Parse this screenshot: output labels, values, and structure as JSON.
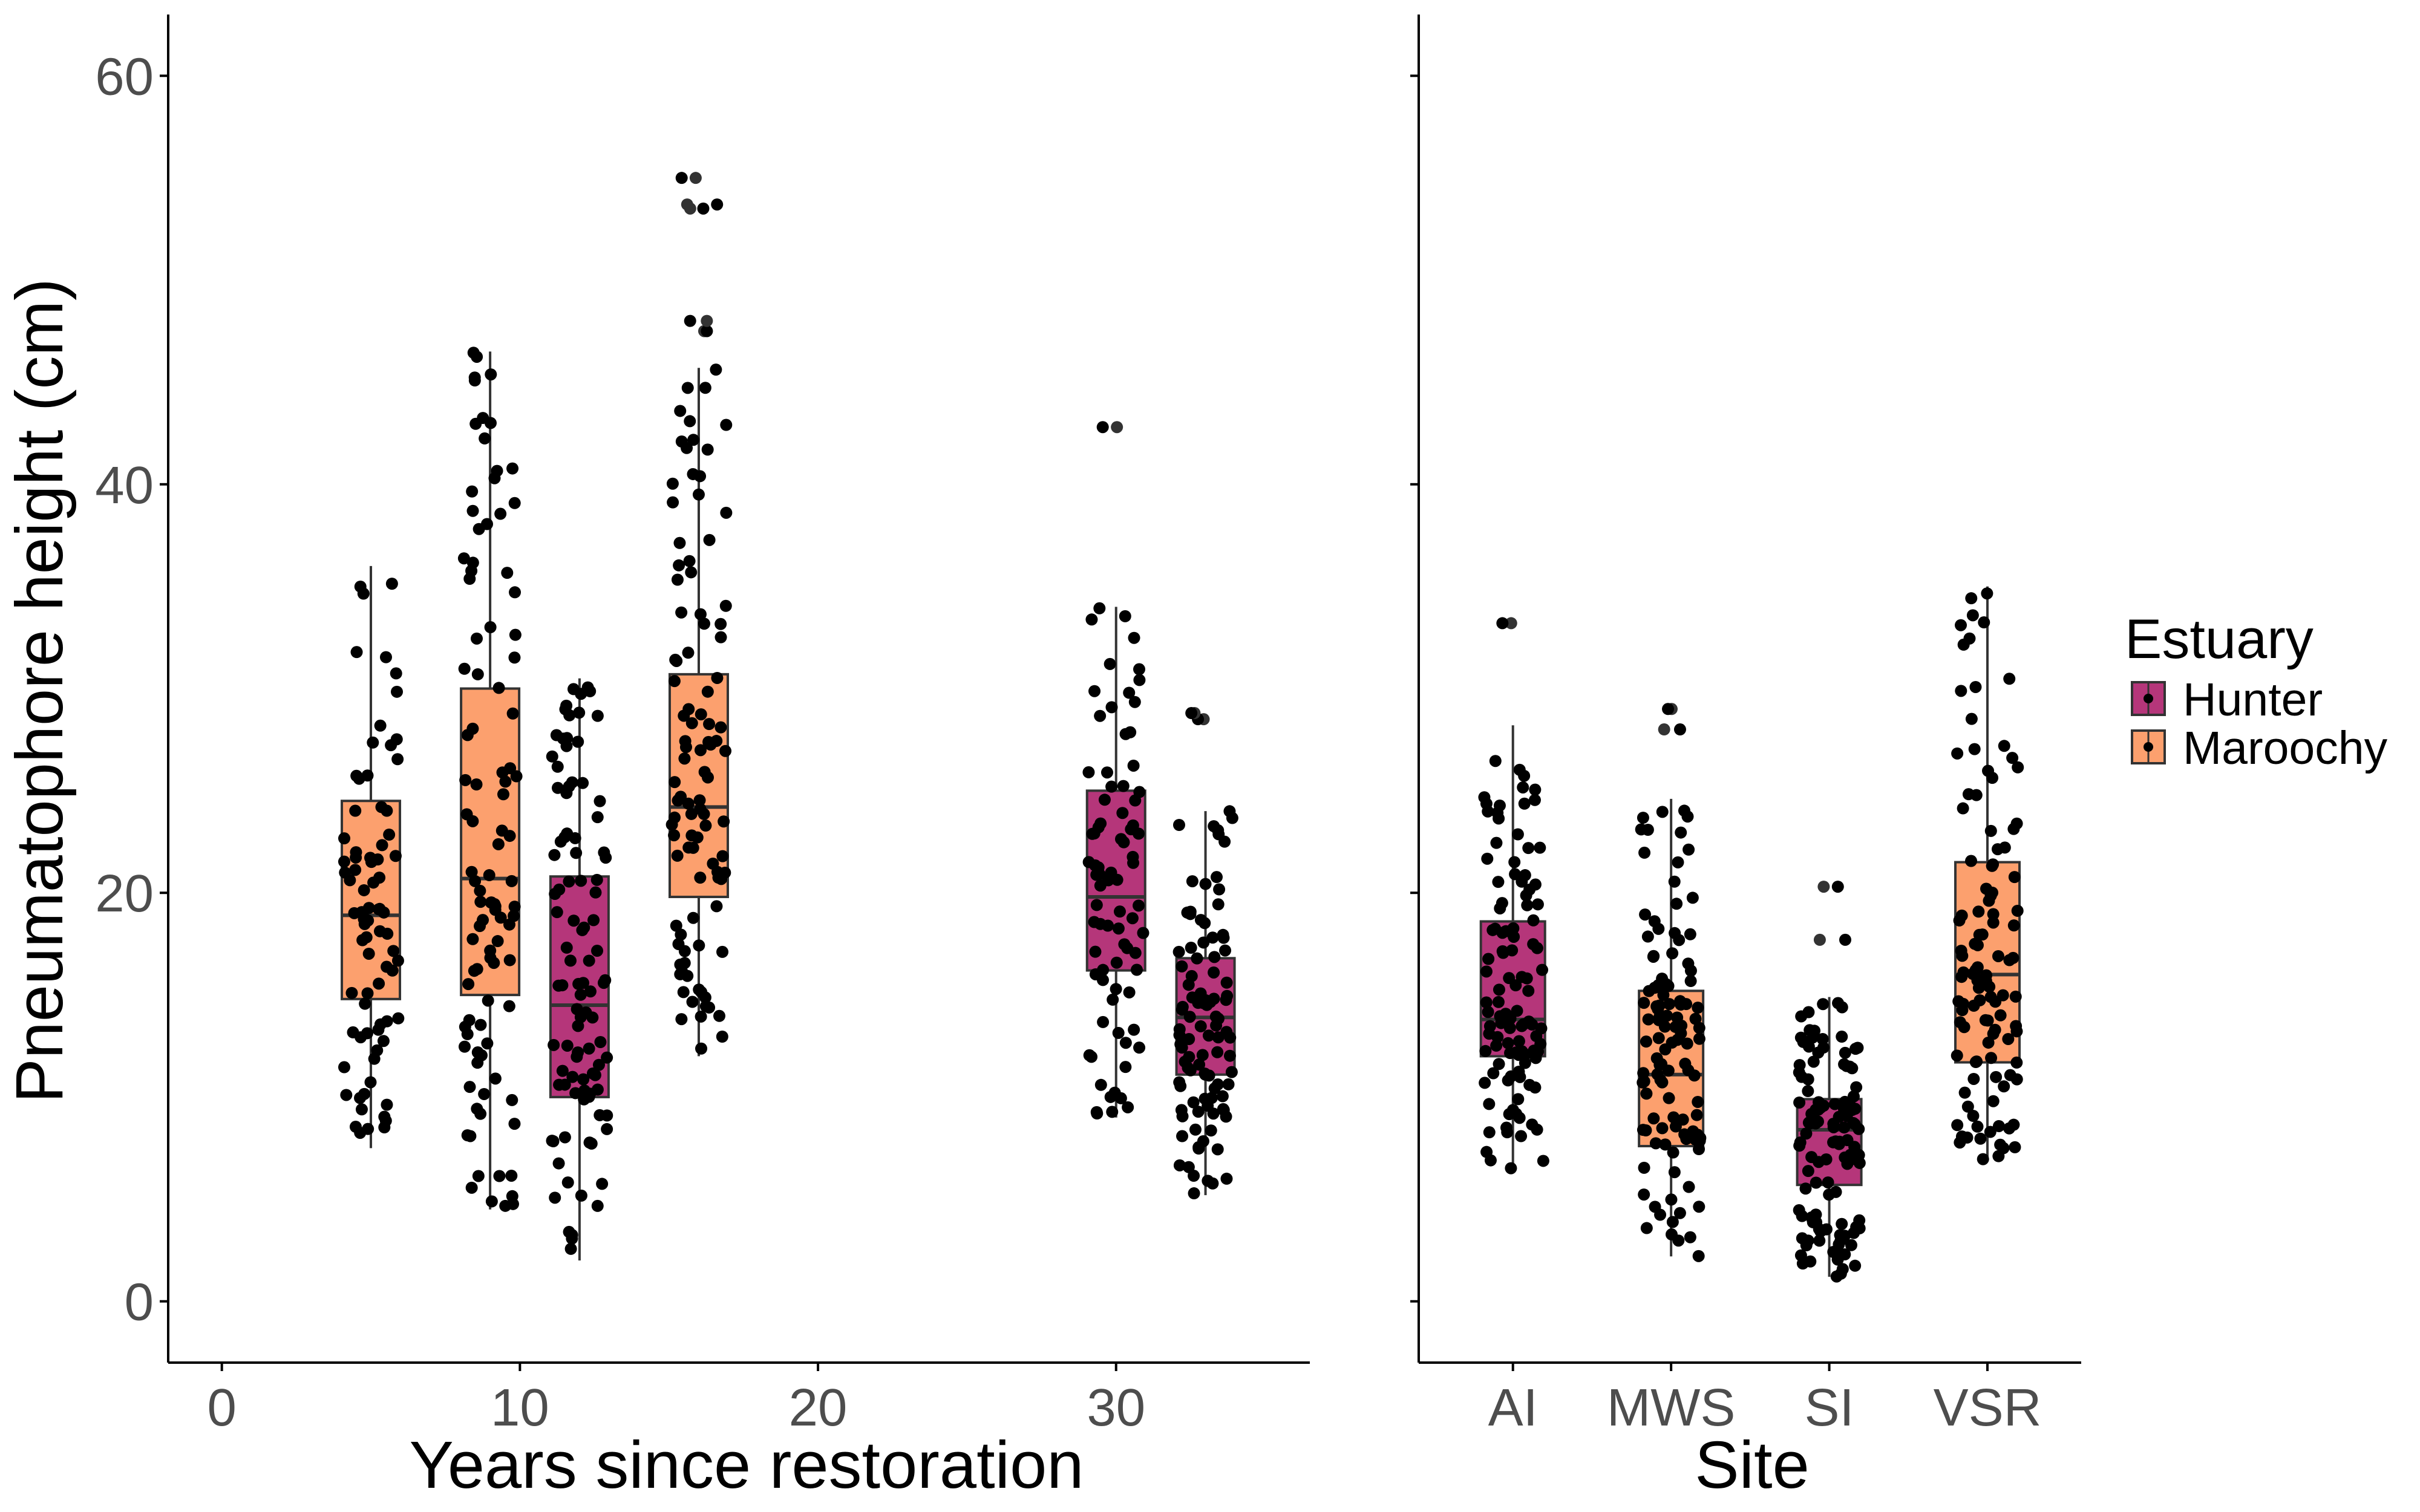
{
  "colors": {
    "Hunter": "#b5367a",
    "Maroochy": "#fca06e",
    "point": "#000000",
    "axis": "#000000",
    "tick_text": "#4d4d4d"
  },
  "chart_data": [
    {
      "type": "box",
      "panel": "left",
      "ylabel": "Pneumatophore height (cm)",
      "xlabel": "Years since restoration",
      "xlim": [
        -1.8,
        36.5
      ],
      "ylim": [
        -3,
        63
      ],
      "xticks": [
        0,
        10,
        20,
        30
      ],
      "yticks": [
        0,
        20,
        40,
        60
      ],
      "boxes": [
        {
          "estuary": "Maroochy",
          "x": 5,
          "q1": 14.8,
          "median": 18.9,
          "q3": 24.5,
          "lower": 7.5,
          "upper": 36.0,
          "n": 80
        },
        {
          "estuary": "Maroochy",
          "x": 9,
          "q1": 15.0,
          "median": 20.7,
          "q3": 30.0,
          "lower": 4.5,
          "upper": 46.5,
          "n": 100
        },
        {
          "estuary": "Hunter",
          "x": 12,
          "q1": 10.0,
          "median": 14.5,
          "q3": 20.8,
          "lower": 2.0,
          "upper": 30.5,
          "n": 100
        },
        {
          "estuary": "Maroochy",
          "x": 16,
          "q1": 19.8,
          "median": 24.2,
          "q3": 30.7,
          "lower": 12.0,
          "upper": 45.7,
          "n": 100,
          "outliers": [
            47.5,
            48.0,
            53.5,
            53.7,
            55.0
          ]
        },
        {
          "estuary": "Hunter",
          "x": 30,
          "q1": 16.2,
          "median": 19.8,
          "q3": 25.0,
          "lower": 9.0,
          "upper": 34.0,
          "n": 80,
          "outliers": [
            42.8
          ]
        },
        {
          "estuary": "Hunter",
          "x": 33,
          "q1": 11.1,
          "median": 13.9,
          "q3": 16.8,
          "lower": 5.2,
          "upper": 24.0,
          "n": 100,
          "outliers": [
            28.5,
            28.8
          ]
        }
      ]
    },
    {
      "type": "box",
      "panel": "right",
      "xlabel": "Site",
      "ylim": [
        -3,
        63
      ],
      "categories": [
        "AI",
        "MWS",
        "SI",
        "VSR"
      ],
      "boxes": [
        {
          "estuary": "Hunter",
          "category": "AI",
          "q1": 12.0,
          "median": 13.8,
          "q3": 18.6,
          "lower": 6.5,
          "upper": 28.2,
          "n": 110,
          "outliers": [
            33.2
          ]
        },
        {
          "estuary": "Maroochy",
          "category": "MWS",
          "q1": 7.6,
          "median": 11.1,
          "q3": 15.2,
          "lower": 2.2,
          "upper": 24.6,
          "n": 110,
          "outliers": [
            28.0,
            29.0
          ]
        },
        {
          "estuary": "Hunter",
          "category": "SI",
          "q1": 5.7,
          "median": 8.4,
          "q3": 9.9,
          "lower": 1.2,
          "upper": 14.9,
          "n": 120,
          "outliers": [
            17.7,
            20.3
          ]
        },
        {
          "estuary": "Maroochy",
          "category": "VSR",
          "q1": 11.7,
          "median": 16.0,
          "q3": 21.5,
          "lower": 6.9,
          "upper": 35.0,
          "n": 110
        }
      ]
    }
  ],
  "legend": {
    "title": "Estuary",
    "items": [
      "Hunter",
      "Maroochy"
    ]
  }
}
